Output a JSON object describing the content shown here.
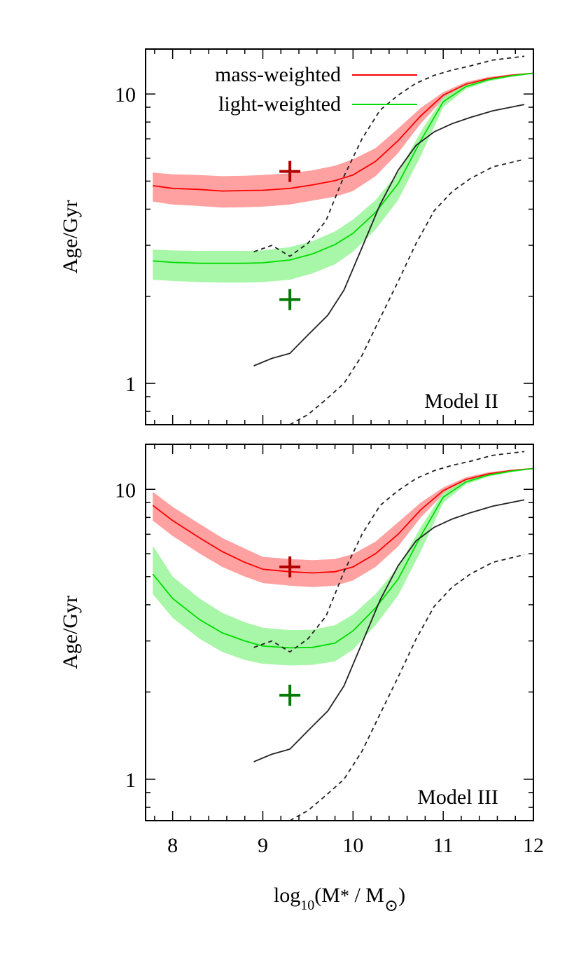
{
  "figure": {
    "xlabel_main": "log",
    "xlabel_sub": "10",
    "xlabel_rest": "(M",
    "xlabel_star": "*",
    "xlabel_mid": " / M",
    "xlabel_sun": "⊙",
    "xlabel_end": ")"
  },
  "chart_data": [
    {
      "type": "line",
      "panel_label": "Model II",
      "ylabel": "Age/Gyr",
      "yscale": "log",
      "xlim": [
        7.7,
        12.0
      ],
      "ylim": [
        0.72,
        14.3
      ],
      "xticks": [
        8,
        9,
        10,
        11,
        12
      ],
      "yticks_labeled": [
        1,
        10
      ],
      "show_xtick_labels": false,
      "legend": {
        "placement": "top-left",
        "entries": [
          {
            "label": "mass-weighted",
            "color": "#ff0000"
          },
          {
            "label": "light-weighted",
            "color": "#00dd00"
          }
        ]
      },
      "series": [
        {
          "name": "mass-weighted",
          "color": "#ff0000",
          "band_color": "#ff9090",
          "x": [
            7.78,
            8.0,
            8.3,
            8.55,
            8.8,
            9.0,
            9.3,
            9.55,
            9.8,
            10.0,
            10.25,
            10.5,
            10.75,
            11.0,
            11.25,
            11.5,
            11.75,
            12.0
          ],
          "y": [
            4.82,
            4.72,
            4.68,
            4.62,
            4.64,
            4.65,
            4.72,
            4.85,
            5.02,
            5.25,
            5.85,
            6.9,
            8.4,
            9.9,
            10.8,
            11.3,
            11.6,
            11.8
          ],
          "lower": [
            4.25,
            4.15,
            4.1,
            4.05,
            4.06,
            4.08,
            4.15,
            4.28,
            4.42,
            4.62,
            5.2,
            6.25,
            7.9,
            9.6,
            10.6,
            11.15,
            11.5,
            11.75
          ],
          "upper": [
            5.35,
            5.28,
            5.25,
            5.2,
            5.22,
            5.25,
            5.32,
            5.45,
            5.65,
            5.95,
            6.5,
            7.6,
            8.95,
            10.15,
            11.0,
            11.45,
            11.7,
            11.85
          ]
        },
        {
          "name": "light-weighted",
          "color": "#00dd00",
          "band_color": "#99f599",
          "x": [
            7.78,
            8.0,
            8.3,
            8.55,
            8.8,
            9.0,
            9.3,
            9.55,
            9.8,
            10.0,
            10.25,
            10.5,
            10.75,
            11.0,
            11.25,
            11.5,
            11.75,
            12.0
          ],
          "y": [
            2.65,
            2.62,
            2.6,
            2.6,
            2.6,
            2.61,
            2.67,
            2.8,
            3.02,
            3.3,
            3.9,
            4.9,
            6.9,
            9.4,
            10.6,
            11.2,
            11.55,
            11.8
          ],
          "lower": [
            2.28,
            2.26,
            2.24,
            2.23,
            2.23,
            2.24,
            2.28,
            2.4,
            2.58,
            2.85,
            3.4,
            4.3,
            6.1,
            9.0,
            10.4,
            11.05,
            11.45,
            11.75
          ],
          "upper": [
            2.9,
            2.88,
            2.87,
            2.87,
            2.87,
            2.88,
            2.96,
            3.1,
            3.35,
            3.68,
            4.3,
            5.35,
            7.4,
            9.75,
            10.8,
            11.35,
            11.65,
            11.85
          ]
        },
        {
          "name": "",
          "color": "#222222",
          "dash": "none",
          "x": [
            8.9,
            9.1,
            9.3,
            9.5,
            9.72,
            9.9,
            10.1,
            10.3,
            10.5,
            10.7,
            10.9,
            11.1,
            11.3,
            11.55,
            11.9
          ],
          "y": [
            1.15,
            1.22,
            1.27,
            1.47,
            1.72,
            2.1,
            2.95,
            4.15,
            5.45,
            6.65,
            7.4,
            7.9,
            8.3,
            8.75,
            9.2
          ]
        },
        {
          "name": "",
          "color": "#222222",
          "dash": "6,5",
          "x": [
            8.9,
            9.1,
            9.3,
            9.5,
            9.7,
            9.9,
            10.1,
            10.3,
            10.5,
            10.7,
            10.9,
            11.1,
            11.3,
            11.55,
            11.9
          ],
          "y": [
            2.85,
            3.0,
            2.75,
            3.05,
            3.65,
            5.2,
            7.0,
            8.8,
            9.9,
            10.9,
            11.6,
            12.1,
            12.5,
            13.1,
            13.5
          ]
        },
        {
          "name": "",
          "color": "#222222",
          "dash": "6,5",
          "x": [
            9.3,
            9.5,
            9.7,
            9.9,
            10.1,
            10.3,
            10.5,
            10.7,
            10.9,
            11.1,
            11.3,
            11.55,
            11.9
          ],
          "y": [
            0.72,
            0.78,
            0.88,
            1.0,
            1.25,
            1.68,
            2.25,
            3.05,
            3.95,
            4.6,
            5.1,
            5.6,
            5.95
          ]
        }
      ],
      "markers": [
        {
          "x": 9.3,
          "y": 5.4,
          "color": "#b00000",
          "symbol": "+"
        },
        {
          "x": 9.3,
          "y": 1.95,
          "color": "#007a00",
          "symbol": "+"
        }
      ]
    },
    {
      "type": "line",
      "panel_label": "Model III",
      "ylabel": "Age/Gyr",
      "yscale": "log",
      "xlim": [
        7.7,
        12.0
      ],
      "ylim": [
        0.72,
        14.3
      ],
      "xticks": [
        8,
        9,
        10,
        11,
        12
      ],
      "yticks_labeled": [
        1,
        10
      ],
      "show_xtick_labels": true,
      "series": [
        {
          "name": "mass-weighted",
          "color": "#ff0000",
          "band_color": "#ff9090",
          "x": [
            7.78,
            8.0,
            8.3,
            8.55,
            8.8,
            9.0,
            9.3,
            9.55,
            9.8,
            10.0,
            10.25,
            10.5,
            10.75,
            11.0,
            11.25,
            11.5,
            11.75,
            12.0
          ],
          "y": [
            8.8,
            7.8,
            6.8,
            6.1,
            5.6,
            5.3,
            5.2,
            5.15,
            5.2,
            5.4,
            6.0,
            7.0,
            8.5,
            9.9,
            10.8,
            11.3,
            11.6,
            11.8
          ],
          "lower": [
            7.8,
            6.9,
            6.0,
            5.4,
            5.0,
            4.75,
            4.65,
            4.6,
            4.65,
            4.85,
            5.4,
            6.35,
            8.0,
            9.6,
            10.6,
            11.15,
            11.5,
            11.75
          ],
          "upper": [
            9.8,
            8.7,
            7.6,
            6.8,
            6.25,
            5.85,
            5.75,
            5.7,
            5.75,
            5.98,
            6.6,
            7.7,
            9.0,
            10.15,
            11.0,
            11.45,
            11.7,
            11.85
          ]
        },
        {
          "name": "light-weighted",
          "color": "#00dd00",
          "band_color": "#99f599",
          "x": [
            7.78,
            8.0,
            8.3,
            8.55,
            8.8,
            9.0,
            9.3,
            9.55,
            9.8,
            10.0,
            10.25,
            10.5,
            10.75,
            11.0,
            11.25,
            11.5,
            11.75,
            12.0
          ],
          "y": [
            5.1,
            4.2,
            3.55,
            3.2,
            3.0,
            2.88,
            2.84,
            2.85,
            2.95,
            3.25,
            3.9,
            4.9,
            6.9,
            9.4,
            10.6,
            11.2,
            11.55,
            11.8
          ],
          "lower": [
            4.35,
            3.6,
            3.05,
            2.75,
            2.58,
            2.5,
            2.47,
            2.48,
            2.55,
            2.8,
            3.4,
            4.3,
            6.1,
            9.0,
            10.4,
            11.05,
            11.45,
            11.75
          ],
          "upper": [
            6.4,
            5.0,
            4.2,
            3.75,
            3.48,
            3.33,
            3.27,
            3.28,
            3.4,
            3.7,
            4.35,
            5.4,
            7.4,
            9.75,
            10.8,
            11.35,
            11.65,
            11.85
          ]
        },
        {
          "name": "",
          "color": "#222222",
          "dash": "none",
          "x": [
            8.9,
            9.1,
            9.3,
            9.5,
            9.72,
            9.9,
            10.1,
            10.3,
            10.5,
            10.7,
            10.9,
            11.1,
            11.3,
            11.55,
            11.9
          ],
          "y": [
            1.15,
            1.22,
            1.27,
            1.47,
            1.72,
            2.1,
            2.95,
            4.15,
            5.45,
            6.65,
            7.4,
            7.9,
            8.3,
            8.75,
            9.2
          ]
        },
        {
          "name": "",
          "color": "#222222",
          "dash": "6,5",
          "x": [
            8.9,
            9.1,
            9.3,
            9.5,
            9.7,
            9.9,
            10.1,
            10.3,
            10.5,
            10.7,
            10.9,
            11.1,
            11.3,
            11.55,
            11.9
          ],
          "y": [
            2.85,
            3.0,
            2.75,
            3.05,
            3.65,
            5.2,
            7.0,
            8.8,
            9.9,
            10.9,
            11.6,
            12.1,
            12.5,
            13.1,
            13.5
          ]
        },
        {
          "name": "",
          "color": "#222222",
          "dash": "6,5",
          "x": [
            9.3,
            9.5,
            9.7,
            9.9,
            10.1,
            10.3,
            10.5,
            10.7,
            10.9,
            11.1,
            11.3,
            11.55,
            11.9
          ],
          "y": [
            0.72,
            0.78,
            0.88,
            1.0,
            1.25,
            1.68,
            2.25,
            3.05,
            3.95,
            4.6,
            5.1,
            5.6,
            5.95
          ]
        }
      ],
      "markers": [
        {
          "x": 9.3,
          "y": 5.4,
          "color": "#b00000",
          "symbol": "+"
        },
        {
          "x": 9.3,
          "y": 1.95,
          "color": "#007a00",
          "symbol": "+"
        }
      ]
    }
  ]
}
